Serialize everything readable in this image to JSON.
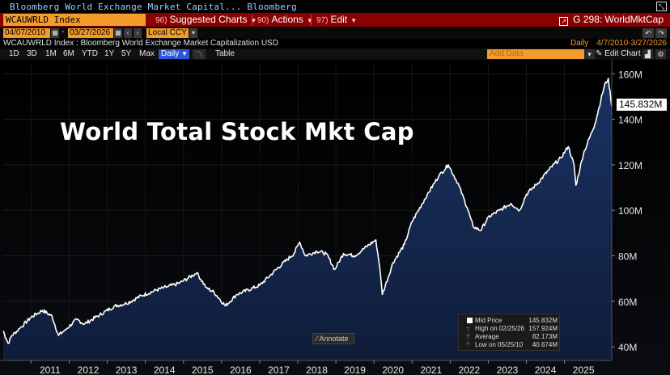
{
  "window": {
    "title": "Bloomberg World Exchange Market Capital...  Bloomberg"
  },
  "command_bar": {
    "ticker": "WCAUWRLD Index",
    "buttons": [
      {
        "num": "96)",
        "label": "Suggested Charts"
      },
      {
        "num": "90)",
        "label": "Actions"
      },
      {
        "num": "97)",
        "label": "Edit"
      }
    ],
    "function_code": "G 298: WorldMktCap"
  },
  "date_row": {
    "start": "04/07/2010",
    "end": "03/27/2026",
    "currency": "Local CCY"
  },
  "info_row": {
    "description": "WCAUWRLD Index : Bloomberg World Exchange Market Capitalization USD",
    "period": "Daily",
    "range": "4/7/2010-3/27/2026"
  },
  "toolbar": {
    "ranges": [
      "1D",
      "3D",
      "1M",
      "6M",
      "YTD",
      "1Y",
      "5Y",
      "Max"
    ],
    "frequency": "Daily",
    "table_label": "Table",
    "add_data_placeholder": "Add Data",
    "edit_chart_label": "Edit Chart"
  },
  "chart_title": "World Total Stock Mkt Cap",
  "annotate_label": "Annotate",
  "last_price_label": "145.832M",
  "legend": {
    "mid_label": "Mid Price",
    "mid_value": "145.832M",
    "high_label": "High on 02/25/26",
    "high_value": "157.924M",
    "avg_label": "Average",
    "avg_value": "82.173M",
    "low_label": "Low on 05/25/10",
    "low_value": "40.674M"
  },
  "colors": {
    "bloomberg_amber": "#f39b2b",
    "command_red": "#8b0000",
    "area_fill": "#16284f",
    "line": "#ffffff"
  },
  "chart_data": {
    "type": "area",
    "title": "World Total Stock Mkt Cap",
    "ylabel": "",
    "xlabel": "",
    "ylim": [
      34,
      164
    ],
    "xlim": [
      2010.27,
      2026.24
    ],
    "y_ticks": [
      40,
      60,
      80,
      100,
      120,
      140,
      160
    ],
    "y_tick_labels": [
      "40M",
      "60M",
      "80M",
      "100M",
      "120M",
      "140M",
      "160M"
    ],
    "x_ticks": [
      2011,
      2012,
      2013,
      2014,
      2015,
      2016,
      2017,
      2018,
      2019,
      2020,
      2021,
      2022,
      2023,
      2024,
      2025
    ],
    "x_tick_labels": [
      "2011",
      "2012",
      "2013",
      "2014",
      "2015",
      "2016",
      "2017",
      "2018",
      "2019",
      "2020",
      "2021",
      "2022",
      "2023",
      "2024",
      "2025"
    ],
    "series": [
      {
        "name": "Mid Price",
        "x": [
          2010.27,
          2010.4,
          2010.5,
          2010.7,
          2011.0,
          2011.3,
          2011.55,
          2011.72,
          2011.9,
          2012.2,
          2012.4,
          2012.8,
          2013.2,
          2013.5,
          2013.9,
          2014.3,
          2014.6,
          2014.9,
          2015.35,
          2015.6,
          2015.8,
          2016.1,
          2016.4,
          2016.7,
          2017.0,
          2017.5,
          2017.9,
          2018.05,
          2018.2,
          2018.5,
          2018.75,
          2018.97,
          2019.2,
          2019.5,
          2019.8,
          2020.05,
          2020.15,
          2020.22,
          2020.5,
          2020.8,
          2021.0,
          2021.4,
          2021.7,
          2021.95,
          2022.2,
          2022.45,
          2022.6,
          2022.8,
          2023.0,
          2023.3,
          2023.6,
          2023.82,
          2024.0,
          2024.3,
          2024.6,
          2024.9,
          2025.1,
          2025.25,
          2025.3,
          2025.5,
          2025.8,
          2026.05,
          2026.15,
          2026.24
        ],
        "values": [
          47,
          41.5,
          45,
          48,
          53,
          56,
          53.5,
          45,
          47.5,
          52,
          50,
          54,
          58,
          59,
          62.5,
          65,
          66.5,
          68,
          72.5,
          66,
          64,
          58,
          63,
          65,
          67,
          75,
          81,
          86,
          80,
          82,
          81,
          74,
          81,
          80,
          84,
          87,
          75,
          63,
          77,
          85,
          95,
          107,
          115,
          120,
          112,
          101,
          93,
          91,
          97,
          100,
          103,
          100,
          107,
          112,
          118,
          123,
          128,
          120,
          111,
          125,
          138,
          155,
          158,
          145.8
        ]
      }
    ],
    "summary": {
      "last": 145.832,
      "high": 157.924,
      "high_date": "02/25/26",
      "average": 82.173,
      "low": 40.674,
      "low_date": "05/25/10"
    }
  }
}
